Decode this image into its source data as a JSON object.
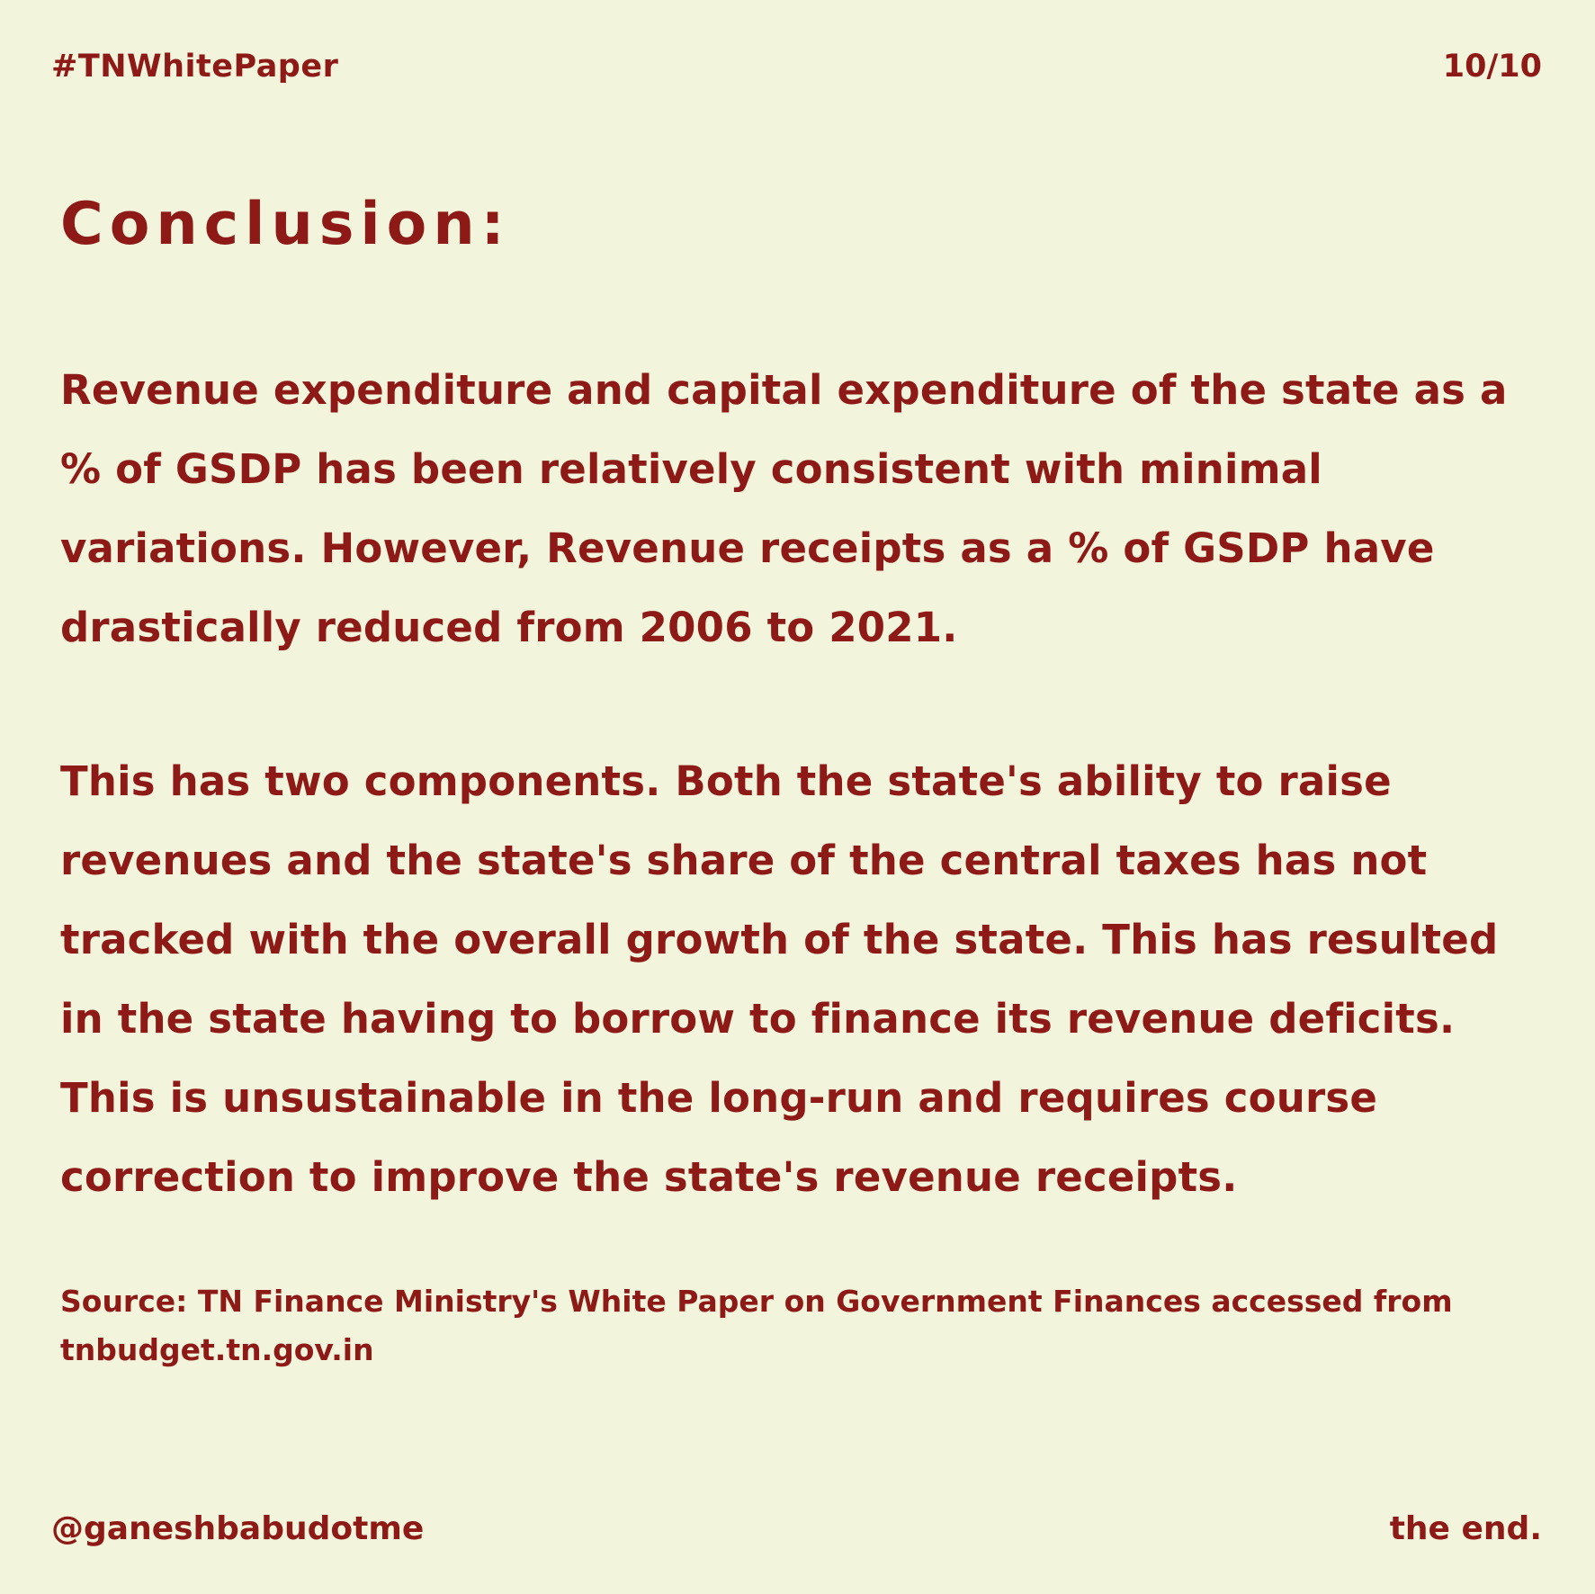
{
  "header": {
    "hashtag": "#TNWhitePaper",
    "page_indicator": "10/10"
  },
  "title": "Conclusion:",
  "paragraphs": [
    "Revenue expenditure and capital expenditure of the state as a % of GSDP has been relatively consistent with minimal variations. However, Revenue receipts as a % of GSDP have drastically reduced from 2006 to 2021.",
    "This has two components. Both the state's ability to raise revenues and the state's share of the central taxes has not tracked with the overall growth of the state.  This has resulted in the state having to borrow to finance its revenue deficits. This is unsustainable in the long-run and requires course correction to improve the state's revenue receipts."
  ],
  "source": "Source: TN Finance Ministry's White Paper on Government Finances accessed from tnbudget.tn.gov.in",
  "footer": {
    "handle": "@ganeshbabudotme",
    "closing": "the end."
  },
  "colors": {
    "background": "#f3f4dc",
    "text": "#8d1a16"
  }
}
